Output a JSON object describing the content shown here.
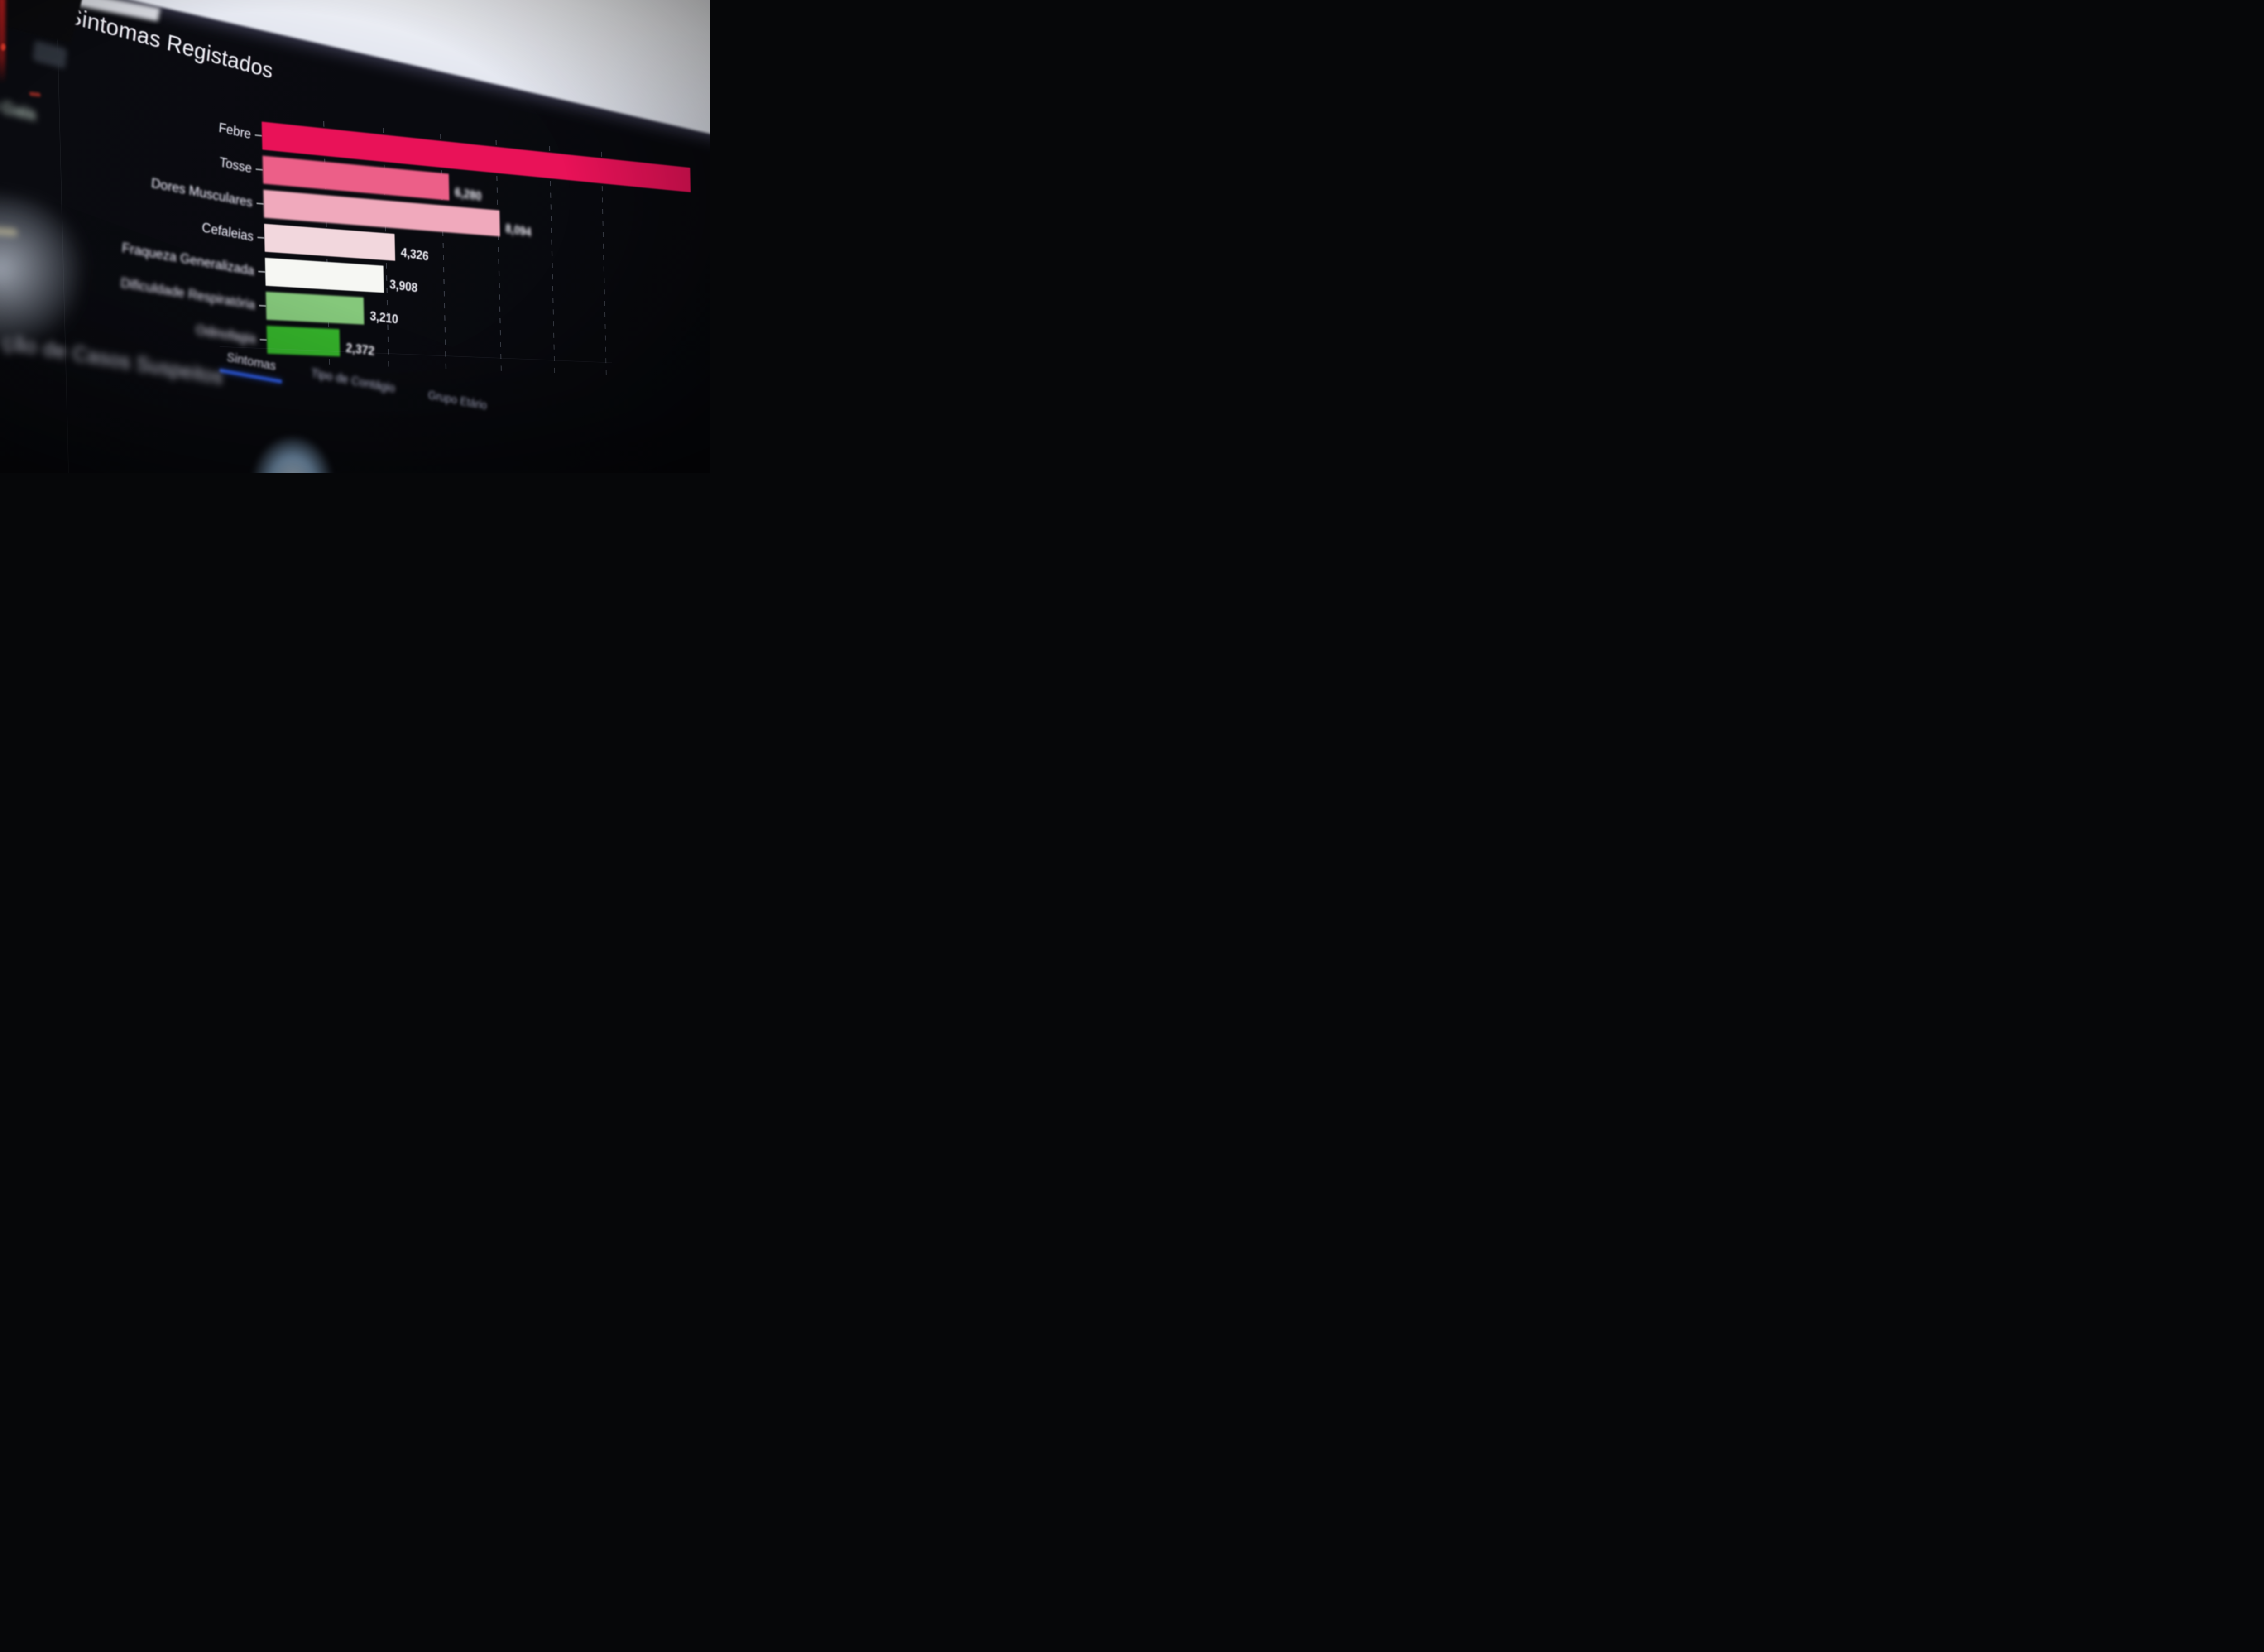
{
  "photo": {
    "description": "Angled close-up photograph of a dark analytics dashboard on a monitor with bright window glare at the top",
    "glare_color": "#f2f3f7"
  },
  "sidebar": {
    "fragments": [
      {
        "label": "mados"
      },
      {
        "label": "o Gala"
      }
    ]
  },
  "main": {
    "title": "Sintomas Registados",
    "tabs": [
      {
        "label": "Sintomas",
        "active": true
      },
      {
        "label": "Tipo de Contágio",
        "active": false
      },
      {
        "label": "Grupo Etário",
        "active": false
      }
    ],
    "active_tab_underline_color": "#2a55d4",
    "bottom_left_heading_fragment": "ção de Casos Suspeitos"
  },
  "chart_data": {
    "type": "bar",
    "orientation": "horizontal",
    "title": "Sintomas Registados",
    "categories": [
      "Febre",
      "Tosse",
      "Dores Musculares",
      "Cefaleias",
      "Fraqueza Generalizada",
      "Dificuldade Respiratória",
      "Odinofagia"
    ],
    "values": [
      null,
      6280,
      8094,
      4326,
      3908,
      3210,
      2372
    ],
    "value_labels": [
      "",
      "6,280",
      "8,094",
      "4,326",
      "3,908",
      "3,210",
      "2,372"
    ],
    "bar_colors": [
      "#e91258",
      "#ec5f88",
      "#f0a9bc",
      "#f2d7dd",
      "#f6f7f3",
      "#85c87b",
      "#35b32b"
    ],
    "bar_pct_of_scale": [
      156,
      62.8,
      80.9,
      43.3,
      39.1,
      32.1,
      23.7
    ],
    "xlim": [
      0,
      10000
    ],
    "gridlines": {
      "style": "dashed vertical",
      "interval": 2000
    },
    "legend": "none",
    "notes": "Febre bar runs past the right edge of the photo so its value label is not visible; the 7th category label is out of focus and barely legible in the photograph. Values read from on-bar data labels."
  },
  "colors": {
    "screen_bg": "#0a0b10",
    "title_text": "#f1f3f7",
    "label_text": "#e6ebf2",
    "value_text": "#e9edf0",
    "tab_inactive": "#9aa6ba",
    "tab_active": "#d9dfe8",
    "accent_blue": "#2a55d4"
  }
}
